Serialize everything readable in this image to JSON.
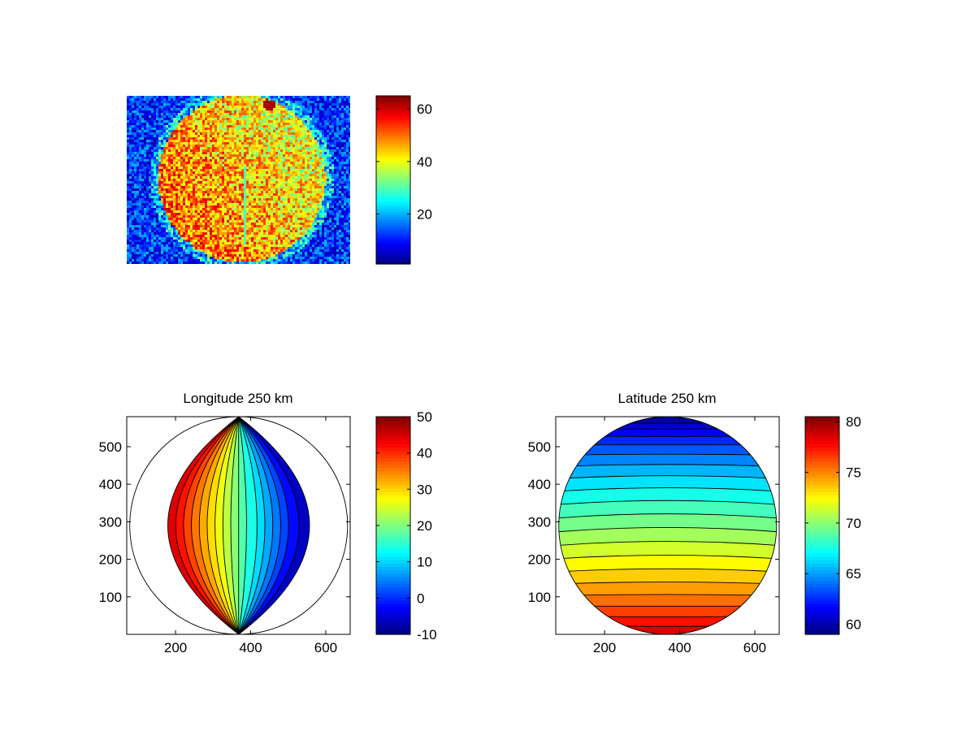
{
  "colors": {
    "colormap": "jet",
    "contour_line": "#000000",
    "axes_frame": "#000000",
    "background": "#ffffff"
  },
  "chart_data": [
    {
      "id": "image",
      "type": "heatmap",
      "title": "",
      "xlabel": "",
      "ylabel": "",
      "colorbar": {
        "clim": [
          1,
          65
        ],
        "ticks": [
          20,
          40,
          60
        ]
      },
      "annotation": "noisy intensity image of a bright circular disk on a low-intensity background; disk ~35-60, background ~5-25, thin dark vertical streak through the disk center"
    },
    {
      "id": "longitude",
      "type": "heatmap",
      "style": "filled-contour",
      "title": "Longitude 250 km",
      "xlabel": "",
      "ylabel": "",
      "xlim": [
        70,
        665
      ],
      "ylim": [
        0,
        580
      ],
      "xticks": [
        200,
        400,
        600
      ],
      "yticks": [
        100,
        200,
        300,
        400,
        500
      ],
      "disk": {
        "cx": 368,
        "cy": 290,
        "rx": 290,
        "ry": 290
      },
      "orientation": "vertical",
      "field_range_left_to_right": [
        47,
        -9
      ],
      "contour_levels": [
        -8,
        -4,
        0,
        3,
        6,
        9,
        12,
        16,
        19,
        22,
        25,
        28,
        31,
        34,
        37,
        40,
        43,
        46
      ],
      "colorbar": {
        "clim": [
          -10,
          50
        ],
        "ticks": [
          -10,
          0,
          10,
          20,
          30,
          40,
          50
        ]
      }
    },
    {
      "id": "latitude",
      "type": "heatmap",
      "style": "filled-contour",
      "title": "Latitude 250 km",
      "xlabel": "",
      "ylabel": "",
      "xlim": [
        70,
        665
      ],
      "ylim": [
        0,
        580
      ],
      "xticks": [
        200,
        400,
        600
      ],
      "yticks": [
        100,
        200,
        300,
        400,
        500
      ],
      "disk": {
        "cx": 368,
        "cy": 290,
        "rx": 290,
        "ry": 290
      },
      "orientation": "horizontal",
      "field_range_top_to_bottom": [
        59.5,
        79.5
      ],
      "contour_levels": [
        60,
        61,
        62,
        63,
        64,
        65,
        66,
        67,
        68,
        69,
        70,
        71,
        72,
        73,
        74,
        75,
        76,
        77,
        78,
        79
      ],
      "colorbar": {
        "clim": [
          59,
          80.5
        ],
        "ticks": [
          60,
          65,
          70,
          75,
          80
        ]
      }
    }
  ]
}
